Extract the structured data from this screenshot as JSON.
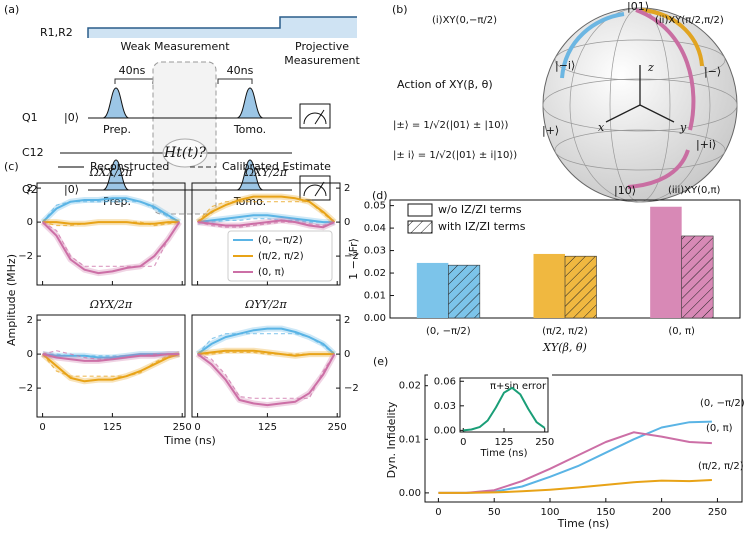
{
  "panel_a": {
    "label": "(a)",
    "control": "R1,R2",
    "weak": "Weak Measurement",
    "projective": [
      "Projective",
      "Measurement"
    ],
    "delay_1": "40ns",
    "delay_2": "40ns",
    "q1": "Q1",
    "q1_state": "|0⟩",
    "q1_prep": "Prep.",
    "q1_tomo": "Tomo.",
    "coupler": "C12",
    "q2": "Q2",
    "q2_state": "|0⟩",
    "q2_prep": "Prep.",
    "q2_tomo": "Tomo.",
    "hamiltonian": "Ht(t)?"
  },
  "panel_b": {
    "label": "(b)",
    "action": "Action of XY(β, θ)",
    "pm_def": "|±⟩ = 1/√2(|01⟩ ± |10⟩)",
    "pmi_def": "|± i⟩ = 1/√2(|01⟩ ± i|10⟩)",
    "path_i": "(i)XY(0,−π/2)",
    "path_ii": "(ii)XY(π/2,π/2)",
    "path_iii": "(iii)XY(0,π)",
    "north": "|01⟩",
    "south": "|10⟩",
    "minus_i": "|−i⟩",
    "minus": "|−⟩",
    "plus": "|+⟩",
    "plus_i": "|+i⟩",
    "axis_z": "z",
    "axis_x": "x",
    "axis_y": "y"
  },
  "panel_c": {
    "label": "(c)",
    "line_styles": [
      "Reconstructed",
      "Calibrated Estimate"
    ],
    "ylabel": "Amplitude (MHz)",
    "xlabel": "Time (ns)"
  },
  "chart_data": [
    {
      "type": "line",
      "title": "ΩXX/2π",
      "x": [
        0,
        25,
        50,
        75,
        100,
        125,
        150,
        175,
        200,
        225,
        245
      ],
      "xlim": [
        -10,
        255
      ],
      "ylim": [
        -3.7,
        2.3
      ],
      "xticks": [
        0,
        125,
        250
      ],
      "yticks": [
        2,
        0,
        {
          "value": -2,
          "label": "−2"
        }
      ],
      "series": [
        {
          "color": "#5ab4e5",
          "values": [
            0,
            0.8,
            1.2,
            1.3,
            1.3,
            1.4,
            1.4,
            1.2,
            0.9,
            0.4,
            0
          ],
          "calibrated": [
            0,
            1.0,
            1.2,
            1.2,
            1.2,
            1.2,
            1.2,
            1.2,
            0.8,
            0.3,
            0
          ]
        },
        {
          "color": "#e8a317",
          "values": [
            0,
            0,
            -0.1,
            -0.1,
            0,
            0,
            0,
            -0.1,
            -0.1,
            0,
            0
          ],
          "calibrated": [
            0,
            -0.2,
            -0.2,
            -0.1,
            0,
            0,
            0,
            0,
            -0.2,
            -0.1,
            0
          ]
        },
        {
          "color": "#cc6fa6",
          "values": [
            0,
            -0.8,
            -2.2,
            -2.8,
            -3.0,
            -2.9,
            -2.7,
            -2.6,
            -2.0,
            -1.0,
            0
          ],
          "calibrated": [
            0,
            -0.5,
            -2.0,
            -2.6,
            -2.6,
            -2.6,
            -2.6,
            -2.6,
            -2.6,
            -1.0,
            0
          ]
        }
      ]
    },
    {
      "type": "line",
      "title": "ΩXY/2π",
      "x": [
        0,
        25,
        50,
        75,
        100,
        125,
        150,
        175,
        200,
        225,
        245
      ],
      "xlim": [
        -10,
        255
      ],
      "ylim": [
        -3.7,
        2.3
      ],
      "xticks": [
        0,
        125,
        250
      ],
      "yticks": [
        2,
        0,
        {
          "value": -2,
          "label": "−2"
        }
      ],
      "series": [
        {
          "name": "(0, −π/2)",
          "color": "#5ab4e5",
          "values": [
            0,
            0.1,
            0.2,
            0.3,
            0.4,
            0.4,
            0.3,
            0.2,
            0.1,
            0,
            0
          ],
          "calibrated": [
            0,
            0,
            0.1,
            0.1,
            0.2,
            0.2,
            0.1,
            0.1,
            0,
            0,
            0
          ]
        },
        {
          "name": "(π/2, π/2)",
          "color": "#e8a317",
          "values": [
            0,
            0.6,
            1.0,
            1.3,
            1.5,
            1.5,
            1.5,
            1.4,
            1.2,
            0.6,
            0
          ],
          "calibrated": [
            0,
            0.9,
            1.2,
            1.2,
            1.2,
            1.2,
            1.2,
            1.2,
            1.2,
            0.5,
            0
          ]
        },
        {
          "name": "(0, π)",
          "color": "#cc6fa6",
          "values": [
            0,
            -0.1,
            -0.2,
            -0.2,
            -0.1,
            0,
            0.1,
            0,
            -0.2,
            -0.3,
            0
          ],
          "calibrated": [
            0,
            -0.2,
            -0.3,
            -0.3,
            -0.2,
            -0.1,
            0,
            0,
            -0.1,
            -0.2,
            0
          ]
        }
      ]
    },
    {
      "type": "line",
      "title": "ΩYX/2π",
      "x": [
        0,
        25,
        50,
        75,
        100,
        125,
        150,
        175,
        200,
        225,
        245
      ],
      "xlim": [
        -10,
        255
      ],
      "ylim": [
        -3.7,
        2.3
      ],
      "xticks": [
        0,
        125,
        250
      ],
      "yticks": [
        2,
        0,
        {
          "value": -2,
          "label": "−2"
        }
      ],
      "series": [
        {
          "color": "#5ab4e5",
          "values": [
            0,
            -0.1,
            -0.1,
            -0.1,
            -0.2,
            -0.2,
            -0.1,
            0,
            0,
            0,
            0
          ],
          "calibrated": [
            0,
            0,
            -0.1,
            -0.1,
            -0.1,
            -0.1,
            -0.1,
            0,
            0,
            0,
            0
          ]
        },
        {
          "color": "#e8a317",
          "values": [
            0,
            -0.7,
            -1.4,
            -1.6,
            -1.5,
            -1.5,
            -1.3,
            -1.0,
            -0.6,
            -0.2,
            0
          ],
          "calibrated": [
            0,
            -1.0,
            -1.3,
            -1.3,
            -1.3,
            -1.3,
            -1.3,
            -1.1,
            -0.5,
            -0.1,
            0
          ]
        },
        {
          "color": "#cc6fa6",
          "values": [
            0,
            -0.2,
            -0.3,
            -0.4,
            -0.4,
            -0.3,
            -0.2,
            -0.1,
            -0.1,
            0,
            0
          ],
          "calibrated": [
            0,
            0.2,
            0,
            -0.2,
            -0.3,
            -0.3,
            -0.2,
            -0.1,
            0,
            0,
            0
          ]
        }
      ]
    },
    {
      "type": "line",
      "title": "ΩYY/2π",
      "x": [
        0,
        25,
        50,
        75,
        100,
        125,
        150,
        175,
        200,
        225,
        245
      ],
      "xlim": [
        -10,
        255
      ],
      "ylim": [
        -3.7,
        2.3
      ],
      "xticks": [
        0,
        125,
        250
      ],
      "yticks": [
        2,
        0,
        {
          "value": -2,
          "label": "−2"
        }
      ],
      "series": [
        {
          "color": "#5ab4e5",
          "values": [
            0,
            0.6,
            1.0,
            1.2,
            1.4,
            1.5,
            1.5,
            1.3,
            1.0,
            0.6,
            0
          ],
          "calibrated": [
            0,
            0.9,
            1.2,
            1.2,
            1.2,
            1.2,
            1.2,
            1.2,
            1.0,
            0.5,
            0
          ]
        },
        {
          "color": "#e8a317",
          "values": [
            0,
            0.1,
            0.2,
            0.2,
            0.2,
            0.1,
            0,
            -0.1,
            0,
            0,
            0
          ],
          "calibrated": [
            0,
            0,
            0.1,
            0.1,
            0.1,
            0,
            0,
            0,
            0,
            0,
            0
          ]
        },
        {
          "color": "#cc6fa6",
          "values": [
            0,
            -0.6,
            -1.5,
            -2.7,
            -2.9,
            -3.0,
            -2.9,
            -2.8,
            -2.3,
            -1.2,
            0
          ],
          "calibrated": [
            0,
            -0.3,
            -1.2,
            -2.5,
            -2.6,
            -2.6,
            -2.6,
            -2.6,
            -2.6,
            -1.0,
            0
          ]
        }
      ]
    },
    {
      "type": "bar",
      "panel": "(d)",
      "ylabel": "1 − ⟨Fr⟩",
      "xlabel": "XY(β, θ)",
      "categories": [
        "(0, −π/2)",
        "(π/2, π/2)",
        "(0, π)"
      ],
      "colors": [
        "#7cc4ea",
        "#f0b840",
        "#d889b6"
      ],
      "ylim": [
        0,
        0.0525
      ],
      "yticks": [
        {
          "value": 0,
          "label": "0.00"
        },
        {
          "value": 0.01,
          "label": "0.01"
        },
        {
          "value": 0.02,
          "label": "0.02"
        },
        {
          "value": 0.03,
          "label": "0.03"
        },
        {
          "value": 0.04,
          "label": "0.04"
        },
        {
          "value": 0.05,
          "label": "0.05"
        }
      ],
      "series": [
        {
          "name": "w/o IZ/ZI terms",
          "hatch": false,
          "values": [
            0.0245,
            0.0285,
            0.0495
          ]
        },
        {
          "name": "with IZ/ZI terms",
          "hatch": true,
          "values": [
            0.0235,
            0.0275,
            0.0365
          ]
        }
      ]
    },
    {
      "type": "line",
      "panel": "(e)",
      "ylabel": "Dyn. Infidelity",
      "xlabel": "Time (ns)",
      "x": [
        0,
        25,
        50,
        75,
        100,
        125,
        150,
        175,
        200,
        225,
        245
      ],
      "xlim": [
        -12,
        272
      ],
      "ylim": [
        -0.0017,
        0.022
      ],
      "xticks": [
        0,
        50,
        100,
        150,
        200,
        250
      ],
      "yticks": [
        {
          "value": 0,
          "label": "0.00"
        },
        {
          "value": 0.01,
          "label": "0.01"
        },
        {
          "value": 0.02,
          "label": "0.02"
        }
      ],
      "series": [
        {
          "name": "(0, −π/2)",
          "color": "#5ab4e5",
          "values": [
            0,
            0,
            0.0002,
            0.0012,
            0.003,
            0.005,
            0.0075,
            0.01,
            0.0122,
            0.0132,
            0.0133
          ]
        },
        {
          "name": "(0, π)",
          "color": "#cc6fa6",
          "values": [
            0,
            0,
            0.0005,
            0.0022,
            0.0045,
            0.007,
            0.0095,
            0.0113,
            0.0105,
            0.0095,
            0.0093
          ]
        },
        {
          "name": "(π/2, π/2)",
          "color": "#e8a317",
          "values": [
            0,
            0,
            0.0001,
            0.0003,
            0.0006,
            0.001,
            0.0015,
            0.002,
            0.0023,
            0.0022,
            0.0024
          ]
        }
      ]
    },
    {
      "type": "line",
      "title": "π+sin error",
      "xlabel": "Time (ns)",
      "x": [
        0,
        25,
        50,
        75,
        100,
        125,
        150,
        175,
        200,
        225,
        250
      ],
      "xlim": [
        -10,
        260
      ],
      "ylim": [
        -0.002,
        0.064
      ],
      "xticks": [
        0,
        125,
        250
      ],
      "yticks": [
        {
          "value": 0,
          "label": "0.00"
        },
        {
          "value": 0.03,
          "label": "0.03"
        },
        {
          "value": 0.06,
          "label": "0.06"
        }
      ],
      "series": [
        {
          "color": "#1a9e77",
          "values": [
            0,
            0.001,
            0.004,
            0.012,
            0.028,
            0.046,
            0.052,
            0.044,
            0.026,
            0.01,
            0.003
          ]
        }
      ]
    }
  ]
}
